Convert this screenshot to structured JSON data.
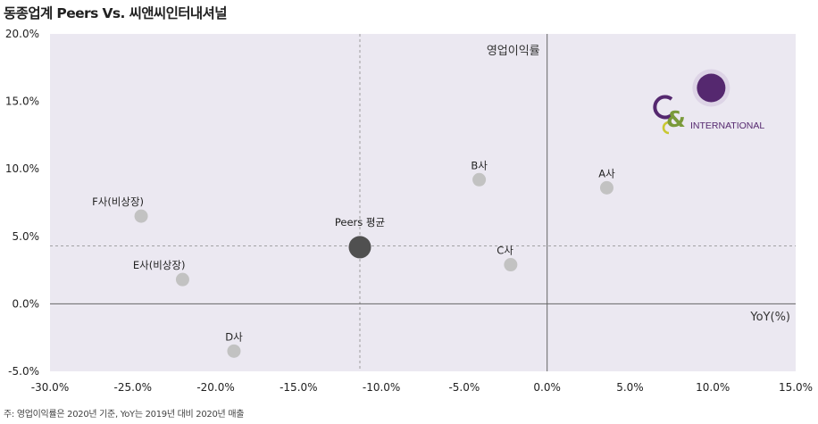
{
  "title": "동종업계 Peers Vs. 씨앤씨인터내셔널",
  "footnote": "주: 영업이익률은 2020년 기준, YoY는 2019년 대비 2020년 매출",
  "colors": {
    "plot_bg": "#ebe8f1",
    "peer_point": "#c2c2c2",
    "average_point": "#505050",
    "company_point": "#55286f",
    "company_halo": "#ddd4e6",
    "logo_purple": "#55286f",
    "logo_green": "#7a9a3a",
    "logo_yellow": "#c9c831"
  },
  "logo": {
    "icon": "cnc-ampersand-logo",
    "text": "INTERNATIONAL"
  },
  "chart_data": {
    "type": "scatter",
    "title": "동종업계 Peers Vs. 씨앤씨인터내셔널",
    "xlabel": "YoY(%)",
    "ylabel": "영업이익률",
    "xlim": [
      -0.3,
      0.15
    ],
    "ylim": [
      -0.05,
      0.2
    ],
    "xticks": [
      -0.3,
      -0.25,
      -0.2,
      -0.15,
      -0.1,
      -0.05,
      0.0,
      0.05,
      0.1,
      0.15
    ],
    "yticks": [
      -0.05,
      0.0,
      0.05,
      0.1,
      0.15,
      0.2
    ],
    "xtick_labels": [
      "-30.0%",
      "-25.0%",
      "-20.0%",
      "-15.0%",
      "-10.0%",
      "-5.0%",
      "0.0%",
      "5.0%",
      "10.0%",
      "15.0%"
    ],
    "ytick_labels": [
      "-5.0%",
      "0.0%",
      "5.0%",
      "10.0%",
      "15.0%",
      "20.0%"
    ],
    "reference_lines": {
      "x": -0.113,
      "y": 0.043
    },
    "points": [
      {
        "label": "A사",
        "x": 0.036,
        "y": 0.086,
        "kind": "peer",
        "label_pos": "above"
      },
      {
        "label": "B사",
        "x": -0.041,
        "y": 0.092,
        "kind": "peer",
        "label_pos": "above"
      },
      {
        "label": "C사",
        "x": -0.022,
        "y": 0.029,
        "kind": "peer",
        "label_pos": "above-left"
      },
      {
        "label": "D사",
        "x": -0.189,
        "y": -0.035,
        "kind": "peer",
        "label_pos": "above"
      },
      {
        "label": "E사(비상장)",
        "x": -0.22,
        "y": 0.018,
        "kind": "peer",
        "label_pos": "above-left"
      },
      {
        "label": "F사(비상장)",
        "x": -0.245,
        "y": 0.065,
        "kind": "peer",
        "label_pos": "above-left"
      },
      {
        "label": "Peers 평균",
        "x": -0.113,
        "y": 0.042,
        "kind": "average",
        "label_pos": "above"
      },
      {
        "label": "",
        "x": 0.099,
        "y": 0.16,
        "kind": "company",
        "label_pos": "none"
      }
    ]
  }
}
